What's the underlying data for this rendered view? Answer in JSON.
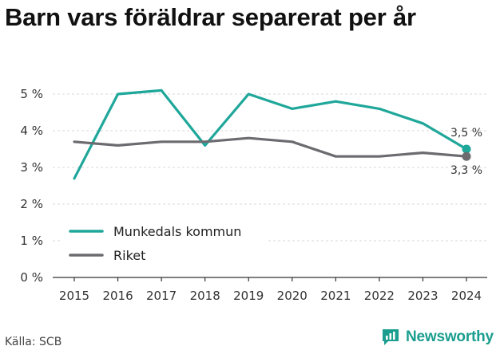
{
  "title": "Barn vars föräldrar separerat per år",
  "source": "Källa: SCB",
  "brand": {
    "name": "Newsworthy",
    "icon": "newsworthy-logo-icon",
    "color": "#1b9e8f"
  },
  "colors": {
    "munkedal": "#1fa79a",
    "riket": "#6b6b70",
    "grid": "#d9d9d9",
    "axis": "#333333"
  },
  "chart_data": {
    "type": "line",
    "title": "Barn vars föräldrar separerat per år",
    "x": [
      2015,
      2016,
      2017,
      2018,
      2019,
      2020,
      2021,
      2022,
      2023,
      2024
    ],
    "ylim": [
      0,
      5
    ],
    "yticks": [
      {
        "value": 0,
        "label": "0 %"
      },
      {
        "value": 1,
        "label": "1 %"
      },
      {
        "value": 2,
        "label": "2 %"
      },
      {
        "value": 3,
        "label": "3 %"
      },
      {
        "value": 4,
        "label": "4 %"
      },
      {
        "value": 5,
        "label": "5 %"
      }
    ],
    "grid": true,
    "legend_placement": "bottom-left",
    "series": [
      {
        "name": "Munkedals kommun",
        "color": "#1fa79a",
        "values": [
          2.7,
          5.0,
          5.1,
          3.6,
          5.0,
          4.6,
          4.8,
          4.6,
          4.2,
          3.5
        ],
        "end_label": "3,5 %"
      },
      {
        "name": "Riket",
        "color": "#6b6b70",
        "values": [
          3.7,
          3.6,
          3.7,
          3.7,
          3.8,
          3.7,
          3.3,
          3.3,
          3.4,
          3.3
        ],
        "end_label": "3,3 %"
      }
    ]
  }
}
